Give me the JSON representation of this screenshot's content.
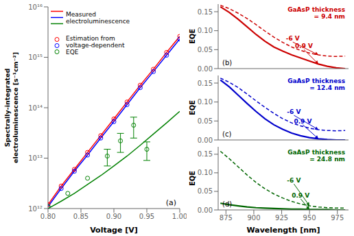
{
  "chart_data": [
    {
      "type": "line",
      "log": "y",
      "xlabel": "Voltage [V]",
      "ylabel": "Spectrally-integrated\nelectroluminescence [s⁻¹cm⁻²]",
      "xlim": [
        0.8,
        1.0
      ],
      "xticks": [
        {
          "value": 0.8,
          "label": "0.80"
        },
        0.85,
        {
          "value": 0.9,
          "label": "0.90"
        },
        0.95,
        {
          "value": 1.0,
          "label": "1.00"
        }
      ],
      "ylim": [
        1000000000000.0,
        1e+16
      ],
      "yticks": [
        {
          "value": 1000000000000.0,
          "label": "10¹²"
        },
        {
          "value": 10000000000000.0,
          "label": "10¹³"
        },
        {
          "value": 100000000000000.0,
          "label": "10¹⁴"
        },
        {
          "value": 1000000000000000.0,
          "label": "10¹⁵"
        },
        {
          "value": 1e+16,
          "label": "10¹⁶"
        }
      ],
      "grid": false,
      "legend": "upper left",
      "annotations": [
        {
          "text": "(a)",
          "position": "lower right"
        }
      ],
      "series": [
        {
          "type": "line",
          "color": "red",
          "line_style": "solid",
          "x": [
            0.8,
            0.82,
            0.84,
            0.86,
            0.88,
            0.9,
            0.92,
            0.94,
            0.96,
            0.98,
            1.0
          ],
          "values": [
            1200000000000.0,
            2800000000000.0,
            6000000000000.0,
            13000000000000.0,
            28000000000000.0,
            60000000000000.0,
            130000000000000.0,
            280000000000000.0,
            580000000000000.0,
            1250000000000000.0,
            2600000000000000.0
          ]
        },
        {
          "name": "Measured\nelectroluminescence",
          "type": "line",
          "color": "blue",
          "line_style": "solid",
          "x": [
            0.8,
            0.82,
            0.84,
            0.86,
            0.88,
            0.9,
            0.92,
            0.94,
            0.96,
            0.98,
            1.0
          ],
          "values": [
            1100000000000.0,
            2500000000000.0,
            5500000000000.0,
            11500000000000.0,
            25000000000000.0,
            53000000000000.0,
            115000000000000.0,
            250000000000000.0,
            520000000000000.0,
            1100000000000000.0,
            2300000000000000.0
          ]
        },
        {
          "type": "line",
          "color": "green",
          "line_style": "solid",
          "x": [
            0.8,
            0.82,
            0.84,
            0.86,
            0.88,
            0.9,
            0.92,
            0.94,
            0.96,
            0.98,
            1.0
          ],
          "values": [
            1000000000000.0,
            1400000000000.0,
            2000000000000.0,
            3000000000000.0,
            4500000000000.0,
            7000000000000.0,
            11000000000000.0,
            18000000000000.0,
            30000000000000.0,
            50000000000000.0,
            85000000000000.0
          ]
        },
        {
          "type": "scatter",
          "marker": "o",
          "color": "red",
          "x": [
            0.8,
            0.82,
            0.84,
            0.86,
            0.88,
            0.9,
            0.92,
            0.94,
            0.96,
            0.98,
            1.0
          ],
          "values": [
            1200000000000.0,
            2800000000000.0,
            6000000000000.0,
            13000000000000.0,
            28000000000000.0,
            60000000000000.0,
            130000000000000.0,
            280000000000000.0,
            580000000000000.0,
            1250000000000000.0,
            2600000000000000.0
          ]
        },
        {
          "name": "Estimation from\nvoltage-dependent\nEQE",
          "type": "scatter",
          "marker": "o",
          "color": "blue",
          "x": [
            0.8,
            0.82,
            0.84,
            0.86,
            0.88,
            0.9,
            0.92,
            0.94,
            0.96,
            0.98,
            1.0
          ],
          "values": [
            1100000000000.0,
            2500000000000.0,
            5500000000000.0,
            11500000000000.0,
            25000000000000.0,
            53000000000000.0,
            115000000000000.0,
            250000000000000.0,
            520000000000000.0,
            1100000000000000.0,
            2300000000000000.0
          ]
        },
        {
          "type": "scatter",
          "marker": "o",
          "color": "green",
          "x": [
            0.89,
            0.91,
            0.93,
            0.95
          ],
          "values": [
            11000000000000.0,
            22000000000000.0,
            45000000000000.0,
            15000000000000.0
          ],
          "errors": [
            4000000000000.0,
            9000000000000.0,
            20000000000000.0,
            6000000000000.0
          ]
        },
        {
          "type": "scatter",
          "marker": "o",
          "color": "green",
          "x": [
            0.8,
            0.83,
            0.86
          ],
          "values": [
            1100000000000.0,
            2000000000000.0,
            4000000000000.0
          ]
        }
      ]
    },
    {
      "type": "line",
      "ylabel": "EQE",
      "tick_labels": "y",
      "grid": false,
      "xlim": [
        868,
        985
      ],
      "xticks": [
        875,
        900,
        925,
        950,
        975
      ],
      "ylim": [
        0,
        0.17
      ],
      "yticks": [
        {
          "value": 0,
          "label": "0.00"
        },
        0.05,
        {
          "value": 0.1,
          "label": "0.10"
        },
        0.15
      ],
      "x": [
        870,
        878,
        886,
        894,
        902,
        910,
        918,
        926,
        934,
        942,
        950,
        958,
        966,
        974,
        982
      ],
      "series": [
        {
          "color": "#cc0000",
          "line_style": "solid",
          "values": [
            0.163,
            0.148,
            0.13,
            0.11,
            0.09,
            0.072,
            0.057,
            0.046,
            0.036,
            0.028,
            0.02,
            0.012,
            0.006,
            0.002,
            0.0
          ]
        },
        {
          "color": "#cc0000",
          "line_style": "dashed",
          "values": [
            0.167,
            0.158,
            0.146,
            0.132,
            0.116,
            0.099,
            0.083,
            0.069,
            0.057,
            0.048,
            0.041,
            0.036,
            0.033,
            0.032,
            0.033
          ]
        }
      ],
      "annotations": [
        {
          "text": "(b)",
          "position": "lower left"
        },
        {
          "text": "GaAsP thickness\n= 9.4 nm",
          "position": "upper right",
          "color": "#cc0000"
        },
        {
          "text": "0.9 V",
          "x": 945,
          "y": 0.05,
          "arrow_to": [
            958,
            0.012
          ],
          "color": "#cc0000"
        },
        {
          "text": "-6 V",
          "x": 935,
          "y": 0.07,
          "arrow_to": [
            958,
            0.036
          ],
          "color": "#cc0000"
        }
      ]
    },
    {
      "type": "line",
      "ylabel": "EQE",
      "tick_labels": "y",
      "grid": false,
      "xlim": [
        868,
        985
      ],
      "xticks": [
        875,
        900,
        925,
        950,
        975
      ],
      "ylim": [
        0,
        0.17
      ],
      "yticks": [
        {
          "value": 0,
          "label": "0.00"
        },
        0.05,
        {
          "value": 0.1,
          "label": "0.10"
        },
        0.15
      ],
      "x": [
        870,
        878,
        886,
        894,
        902,
        910,
        918,
        926,
        934,
        942,
        950,
        958,
        966,
        974,
        982
      ],
      "series": [
        {
          "color": "#0000cc",
          "line_style": "solid",
          "values": [
            0.158,
            0.14,
            0.118,
            0.096,
            0.075,
            0.056,
            0.04,
            0.028,
            0.018,
            0.011,
            0.006,
            0.003,
            0.001,
            0.0,
            0.0
          ]
        },
        {
          "color": "#0000cc",
          "line_style": "dashed",
          "values": [
            0.163,
            0.152,
            0.138,
            0.121,
            0.103,
            0.086,
            0.07,
            0.056,
            0.045,
            0.037,
            0.031,
            0.027,
            0.025,
            0.024,
            0.025
          ]
        }
      ],
      "annotations": [
        {
          "text": "(c)",
          "position": "lower left"
        },
        {
          "text": "GaAsP thickness\n= 12.4 nm",
          "position": "upper right",
          "color": "#0000cc"
        },
        {
          "text": "0.9 V",
          "x": 944,
          "y": 0.04,
          "arrow_to": [
            958,
            0.003
          ],
          "color": "#0000cc"
        },
        {
          "text": "-6 V",
          "x": 936,
          "y": 0.065,
          "arrow_to": [
            958,
            0.027
          ],
          "color": "#0000cc"
        }
      ]
    },
    {
      "type": "line",
      "xlabel": "Wavelength [nm]",
      "ylabel": "EQE",
      "grid": false,
      "xlim": [
        868,
        985
      ],
      "xticks": [
        875,
        900,
        925,
        950,
        975
      ],
      "ylim": [
        0,
        0.17
      ],
      "yticks": [
        {
          "value": 0,
          "label": "0.00"
        },
        0.05,
        {
          "value": 0.1,
          "label": "0.10"
        },
        0.15
      ],
      "x": [
        870,
        878,
        886,
        894,
        902,
        910,
        918,
        926,
        934,
        942,
        950,
        958,
        966,
        974,
        982
      ],
      "series": [
        {
          "color": "#006600",
          "line_style": "solid",
          "values": [
            0.018,
            0.014,
            0.011,
            0.008,
            0.006,
            0.005,
            0.004,
            0.003,
            0.002,
            0.002,
            0.001,
            0.001,
            0.001,
            0.0,
            0.0
          ]
        },
        {
          "color": "#006600",
          "line_style": "dashed",
          "values": [
            0.158,
            0.138,
            0.116,
            0.094,
            0.074,
            0.057,
            0.043,
            0.032,
            0.023,
            0.016,
            0.011,
            0.008,
            0.006,
            0.005,
            0.005
          ]
        }
      ],
      "annotations": [
        {
          "text": "(d)",
          "position": "lower left"
        },
        {
          "text": "GaAsP thickness\n= 24.8 nm",
          "position": "upper right",
          "color": "#006600"
        },
        {
          "text": "0.9 V",
          "x": 942,
          "y": 0.03,
          "arrow_to": [
            950,
            0.001
          ],
          "color": "#006600"
        },
        {
          "text": "-6 V",
          "x": 936,
          "y": 0.07,
          "arrow_to": [
            950,
            0.011
          ],
          "color": "#006600"
        }
      ]
    }
  ]
}
